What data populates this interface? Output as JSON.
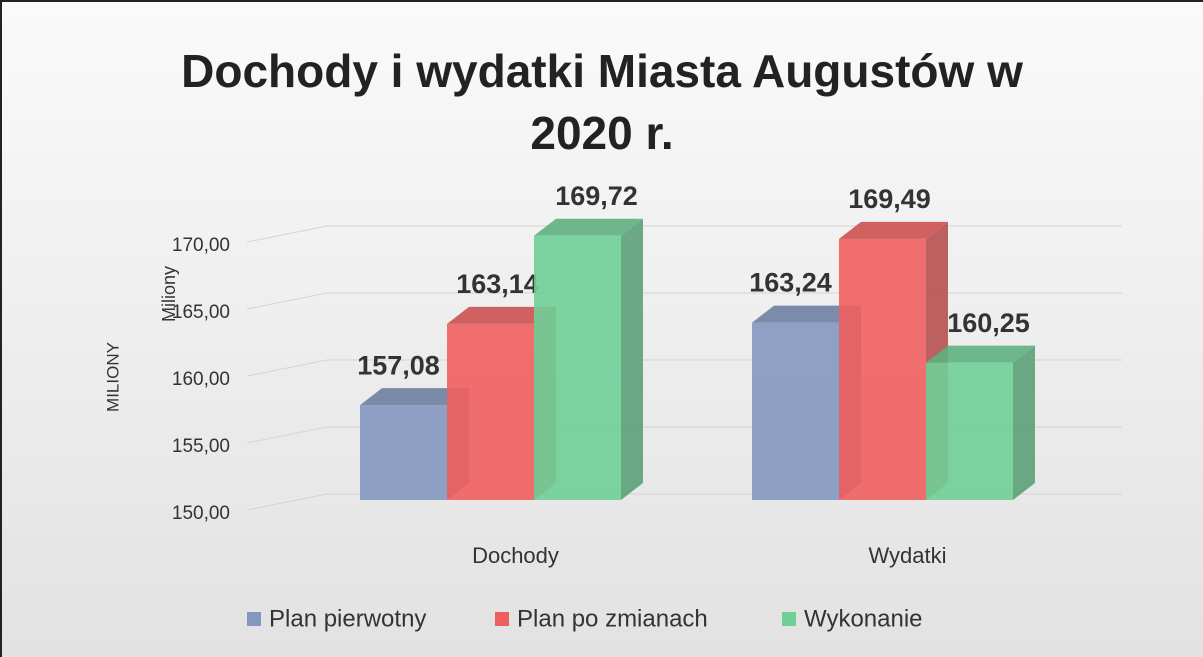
{
  "chart_data": {
    "type": "bar3d",
    "title": "Dochody i wydatki  Miasta Augustów w 2020 r.",
    "axis_title": "MILIONY",
    "ylabel": "Miliony",
    "categories": [
      "Dochody",
      "Wydatki"
    ],
    "series": [
      {
        "name": "Plan pierwotny",
        "color": "#8497c0",
        "values": [
          157.08,
          163.24
        ],
        "value_labels": [
          "157,08",
          "163,24"
        ]
      },
      {
        "name": "Plan po zmianach",
        "color": "#f05f5f",
        "values": [
          163.14,
          169.49
        ],
        "value_labels": [
          "163,14",
          "169,49"
        ]
      },
      {
        "name": "Wykonanie",
        "color": "#6fcf97",
        "values": [
          169.72,
          160.25
        ],
        "value_labels": [
          "169,72",
          "160,25"
        ]
      }
    ],
    "ylim": [
      150,
      170
    ],
    "yticks": [
      {
        "value": 150,
        "label": "150,00"
      },
      {
        "value": 155,
        "label": "155,00"
      },
      {
        "value": 160,
        "label": "160,00"
      },
      {
        "value": 165,
        "label": "165,00"
      },
      {
        "value": 170,
        "label": "170,00"
      }
    ],
    "grid": true,
    "legend": "bottom"
  }
}
